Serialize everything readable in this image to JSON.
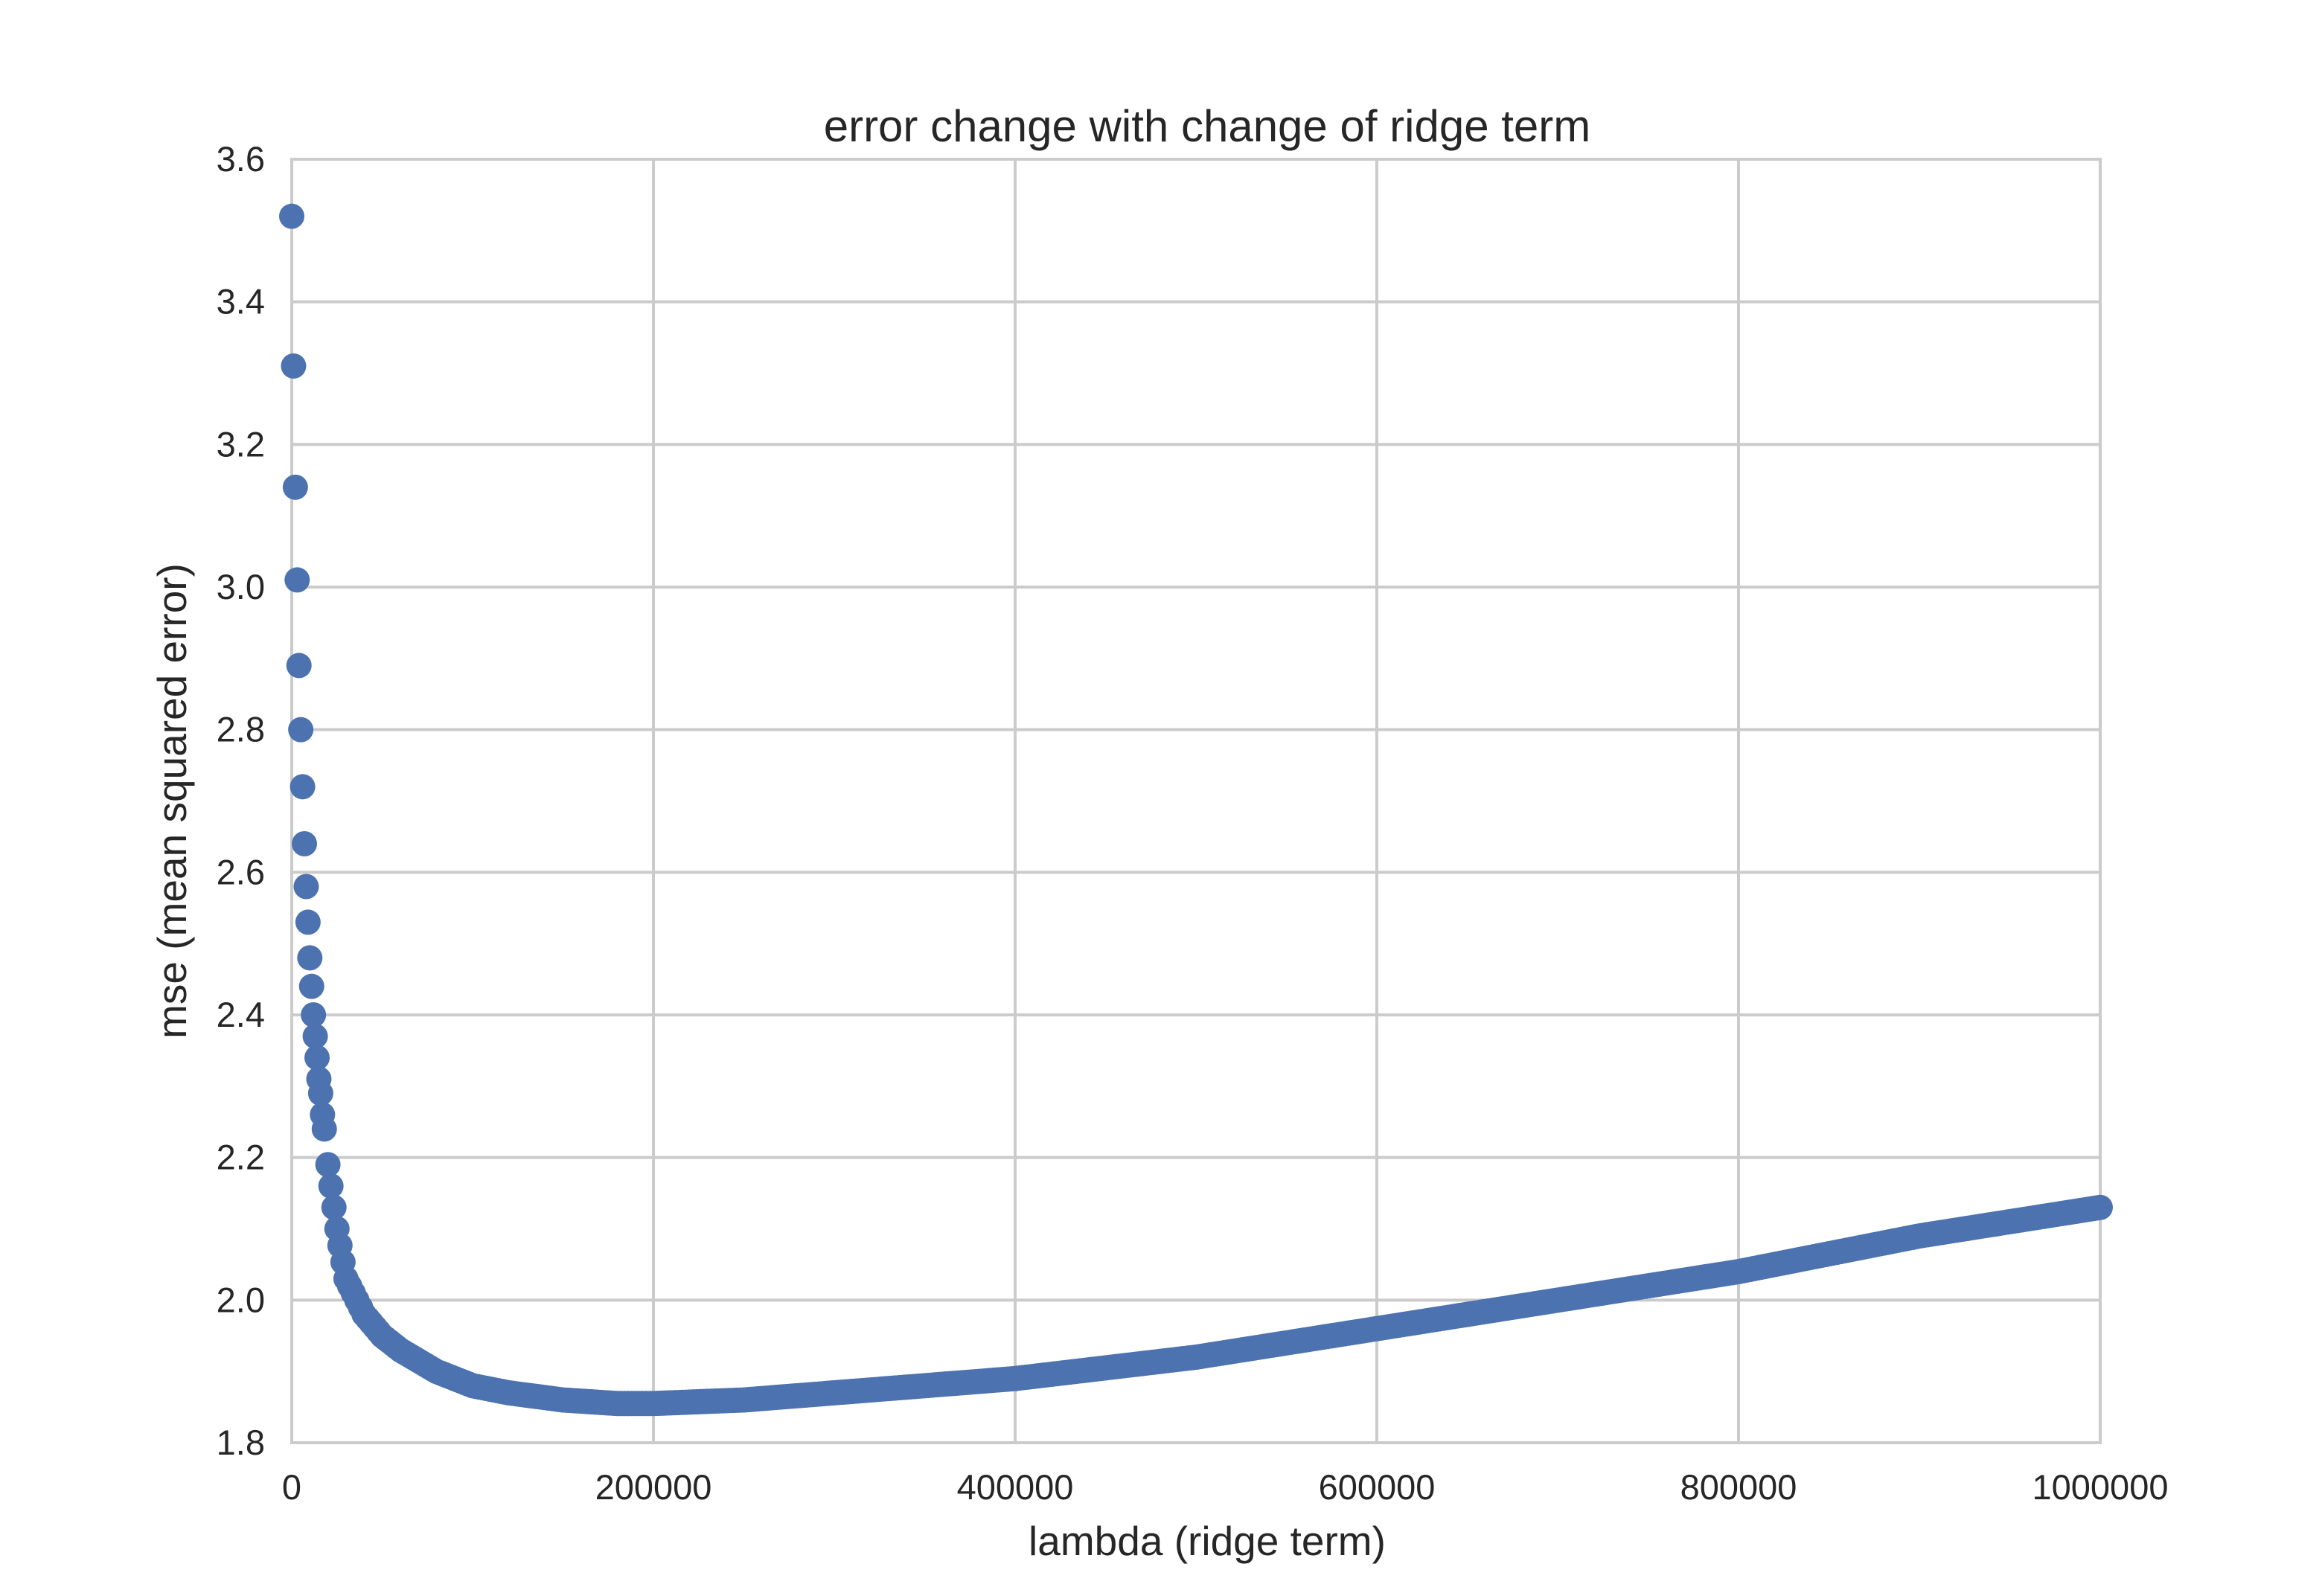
{
  "chart_data": {
    "type": "scatter",
    "title": "error change with change of ridge term",
    "xlabel": "lambda (ridge term)",
    "ylabel": "mse (mean squared error)",
    "xlim": [
      0,
      1000000
    ],
    "ylim": [
      1.8,
      3.6
    ],
    "xticks": [
      "0",
      "200000",
      "400000",
      "600000",
      "800000",
      "1000000"
    ],
    "yticks": [
      "1.8",
      "2.0",
      "2.2",
      "2.4",
      "2.6",
      "2.8",
      "3.0",
      "3.2",
      "3.4",
      "3.6"
    ],
    "grid": true,
    "marker_color": "#4c72b0",
    "series": [
      {
        "x": [
          0,
          1000,
          2000,
          3000,
          4000,
          5000,
          6000,
          7000,
          8000,
          9000,
          10000,
          11000,
          12000,
          13000,
          14000,
          15000,
          16000,
          17000,
          18000,
          20000,
          25000,
          30000,
          40000,
          50000,
          60000,
          80000,
          100000,
          120000,
          150000,
          180000,
          200000,
          250000,
          300000,
          400000,
          500000,
          600000,
          700000,
          800000,
          900000,
          1000000
        ],
        "y": [
          3.52,
          3.31,
          3.14,
          3.01,
          2.89,
          2.8,
          2.72,
          2.64,
          2.58,
          2.53,
          2.48,
          2.44,
          2.4,
          2.37,
          2.34,
          2.31,
          2.29,
          2.26,
          2.24,
          2.19,
          2.1,
          2.03,
          1.98,
          1.95,
          1.93,
          1.9,
          1.88,
          1.87,
          1.86,
          1.855,
          1.855,
          1.86,
          1.87,
          1.89,
          1.92,
          1.96,
          2.0,
          2.04,
          2.09,
          2.13
        ]
      }
    ]
  }
}
